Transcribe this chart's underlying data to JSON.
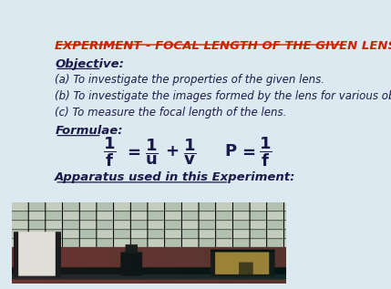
{
  "bg_color": "#dce9f0",
  "title": "EXPERIMENT - FOCAL LENGTH OF THE GIVEN LENS",
  "title_color": "#cc2200",
  "title_fontsize": 9.5,
  "objective_label": "Objective:",
  "objective_fontsize": 9.5,
  "obj_items": [
    "(a) To investigate the properties of the given lens.",
    "(b) To investigate the images formed by the lens for various object positions.",
    "(c) To measure the focal length of the lens."
  ],
  "obj_fontsize": 8.5,
  "formulae_label": "Formulae:",
  "formulae_fontsize": 9.5,
  "apparatus_label": "Apparatus used in this Experiment:",
  "apparatus_fontsize": 9.5,
  "formula_fontsize": 13,
  "text_color": "#1a1a4a",
  "formula_color": "#1a1a4a"
}
